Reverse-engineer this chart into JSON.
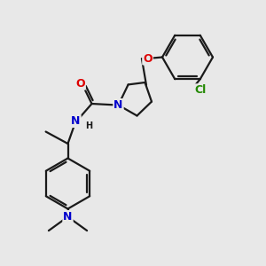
{
  "bg_color": "#e8e8e8",
  "bond_color": "#1a1a1a",
  "bond_width": 1.6,
  "atom_colors": {
    "O": "#dd0000",
    "N": "#0000cc",
    "Cl": "#228800",
    "C": "#1a1a1a",
    "H": "#1a1a1a"
  },
  "font_size": 8.5,
  "fig_size": [
    3.0,
    3.0
  ],
  "dpi": 100
}
